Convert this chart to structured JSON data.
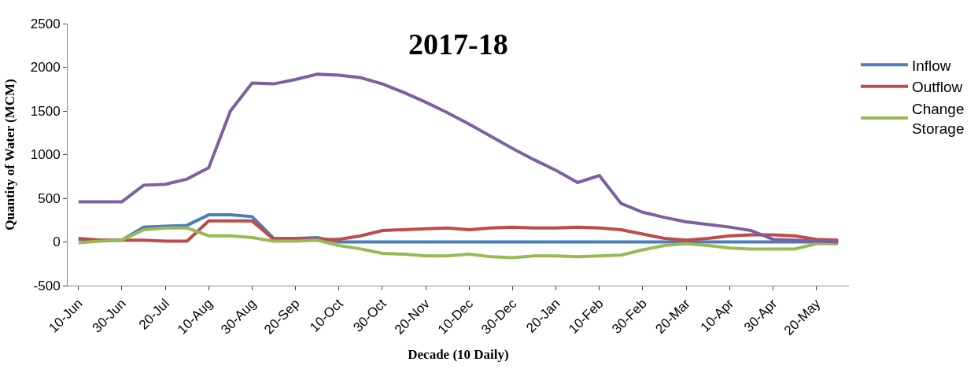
{
  "chart_data": {
    "type": "line",
    "title": "2017-18",
    "xlabel": "Decade (10 Daily)",
    "ylabel": "Quantity of Water (MCM)",
    "categories": [
      "10-Jun",
      null,
      "30-Jun",
      null,
      "20-Jul",
      null,
      "10-Aug",
      null,
      "30-Aug",
      null,
      "20-Sep",
      null,
      "10-Oct",
      null,
      "30-Oct",
      null,
      "20-Nov",
      null,
      "10-Dec",
      null,
      "30-Dec",
      null,
      "20-Jan",
      null,
      "10-Feb",
      null,
      "30-Feb",
      null,
      "20-Mar",
      null,
      "10-Apr",
      null,
      "30-Apr",
      null,
      "20-May",
      null
    ],
    "ylim": [
      -500,
      2500
    ],
    "yticks": [
      -500,
      0,
      500,
      1000,
      1500,
      2000,
      2500
    ],
    "legend": "right",
    "marker": "none",
    "line_style": "solid",
    "series": [
      {
        "name": "Inflow",
        "color": "#4a7ebb",
        "values": [
          30,
          20,
          20,
          170,
          180,
          190,
          310,
          310,
          290,
          40,
          40,
          50,
          0,
          0,
          0,
          0,
          0,
          0,
          0,
          0,
          0,
          0,
          0,
          0,
          0,
          0,
          0,
          0,
          0,
          0,
          0,
          0,
          0,
          0,
          0,
          0
        ]
      },
      {
        "name": "Outflow",
        "color": "#be4b48",
        "values": [
          40,
          20,
          20,
          20,
          10,
          10,
          240,
          240,
          240,
          30,
          30,
          30,
          30,
          70,
          130,
          140,
          150,
          160,
          140,
          160,
          170,
          160,
          160,
          170,
          160,
          140,
          90,
          40,
          20,
          40,
          70,
          80,
          80,
          70,
          30,
          20
        ]
      },
      {
        "name": "Change Storage",
        "color": "#98b954",
        "values": [
          -10,
          10,
          20,
          140,
          160,
          160,
          70,
          70,
          50,
          10,
          10,
          20,
          -40,
          -80,
          -130,
          -140,
          -160,
          -160,
          -140,
          -170,
          -180,
          -160,
          -160,
          -170,
          -160,
          -150,
          -90,
          -40,
          -20,
          -40,
          -70,
          -80,
          -80,
          -80,
          -20,
          -20
        ]
      },
      {
        "color": "#7d60a0",
        "values": [
          460,
          460,
          460,
          650,
          660,
          720,
          850,
          1500,
          1820,
          1810,
          1860,
          1920,
          1910,
          1880,
          1810,
          1710,
          1600,
          1480,
          1350,
          1210,
          1070,
          940,
          820,
          680,
          760,
          440,
          340,
          280,
          230,
          200,
          170,
          130,
          30,
          20,
          10,
          0
        ]
      }
    ]
  }
}
